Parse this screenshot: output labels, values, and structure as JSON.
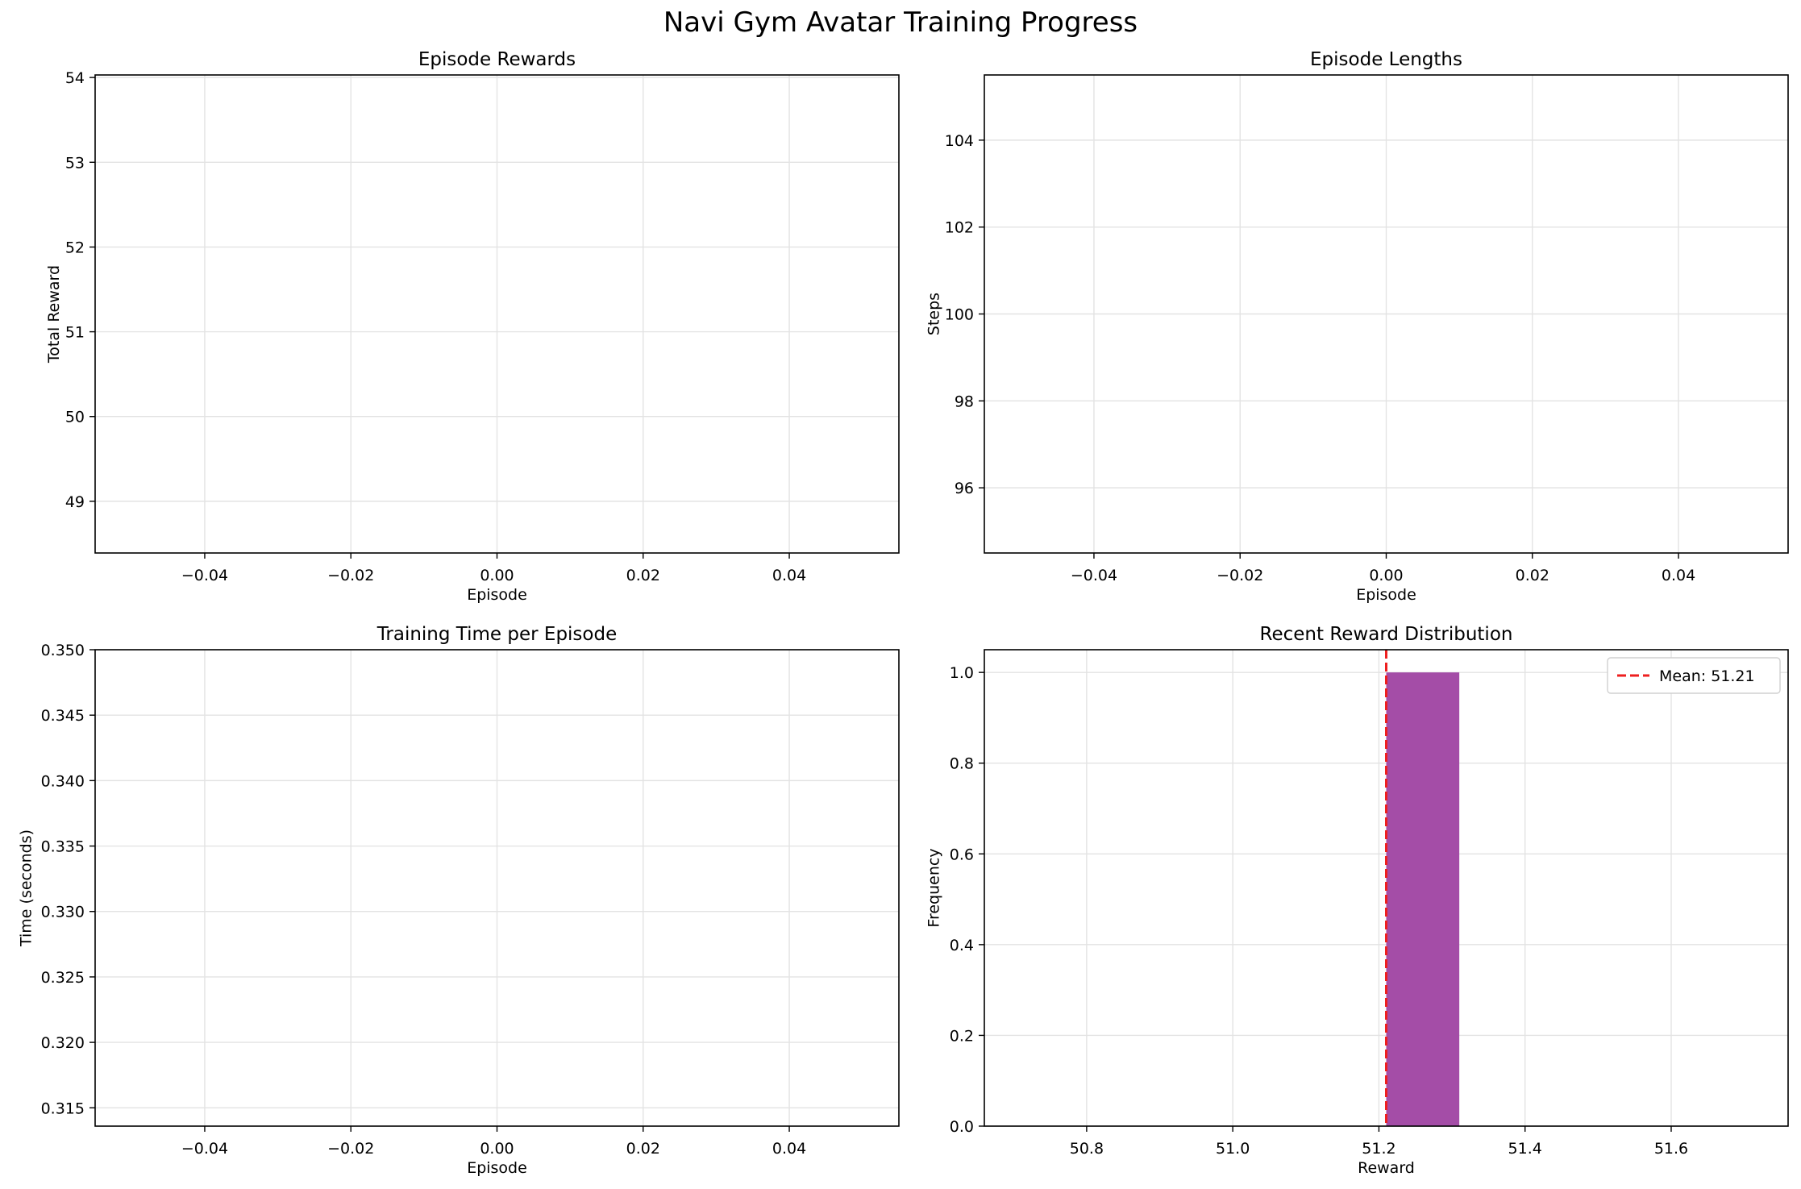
{
  "figure": {
    "title": "Navi Gym Avatar Training Progress"
  },
  "chart_data": [
    {
      "id": "rewards",
      "type": "line",
      "title": "Episode Rewards",
      "xlabel": "Episode",
      "ylabel": "Total Reward",
      "xlim": [
        -0.055,
        0.055
      ],
      "ylim": [
        48.39,
        54.03
      ],
      "xticks": [
        -0.04,
        -0.02,
        0.0,
        0.02,
        0.04
      ],
      "xtick_labels": [
        "−0.04",
        "−0.02",
        "0.00",
        "0.02",
        "0.04"
      ],
      "yticks": [
        49,
        50,
        51,
        52,
        53,
        54
      ],
      "ytick_labels": [
        "49",
        "50",
        "51",
        "52",
        "53",
        "54"
      ],
      "grid": true,
      "series": []
    },
    {
      "id": "lengths",
      "type": "line",
      "title": "Episode Lengths",
      "xlabel": "Episode",
      "ylabel": "Steps",
      "xlim": [
        -0.055,
        0.055
      ],
      "ylim": [
        94.5,
        105.5
      ],
      "xticks": [
        -0.04,
        -0.02,
        0.0,
        0.02,
        0.04
      ],
      "xtick_labels": [
        "−0.04",
        "−0.02",
        "0.00",
        "0.02",
        "0.04"
      ],
      "yticks": [
        96,
        98,
        100,
        102,
        104
      ],
      "ytick_labels": [
        "96",
        "98",
        "100",
        "102",
        "104"
      ],
      "grid": true,
      "series": []
    },
    {
      "id": "time",
      "type": "line",
      "title": "Training Time per Episode",
      "xlabel": "Episode",
      "ylabel": "Time (seconds)",
      "xlim": [
        -0.055,
        0.055
      ],
      "ylim": [
        0.3136,
        0.35
      ],
      "xticks": [
        -0.04,
        -0.02,
        0.0,
        0.02,
        0.04
      ],
      "xtick_labels": [
        "−0.04",
        "−0.02",
        "0.00",
        "0.02",
        "0.04"
      ],
      "yticks": [
        0.315,
        0.32,
        0.325,
        0.33,
        0.335,
        0.34,
        0.345,
        0.35
      ],
      "ytick_labels": [
        "0.315",
        "0.320",
        "0.325",
        "0.330",
        "0.335",
        "0.340",
        "0.345",
        "0.350"
      ],
      "grid": true,
      "series": []
    },
    {
      "id": "dist",
      "type": "bar",
      "title": "Recent Reward Distribution",
      "xlabel": "Reward",
      "ylabel": "Frequency",
      "xlim": [
        50.66,
        51.76
      ],
      "ylim": [
        0,
        1.05
      ],
      "xticks": [
        50.8,
        51.0,
        51.2,
        51.4,
        51.6
      ],
      "xtick_labels": [
        "50.8",
        "51.0",
        "51.2",
        "51.4",
        "51.6"
      ],
      "yticks": [
        0.0,
        0.2,
        0.4,
        0.6,
        0.8,
        1.0
      ],
      "ytick_labels": [
        "0.0",
        "0.2",
        "0.4",
        "0.6",
        "0.8",
        "1.0"
      ],
      "grid": true,
      "bins": [
        {
          "x0": 51.21,
          "x1": 51.31,
          "count": 1
        }
      ],
      "bar_color": "#a44da7",
      "mean_line": {
        "value": 51.21,
        "color": "#ee1f1f",
        "label": "Mean: 51.21"
      },
      "legend": "top-right"
    }
  ]
}
